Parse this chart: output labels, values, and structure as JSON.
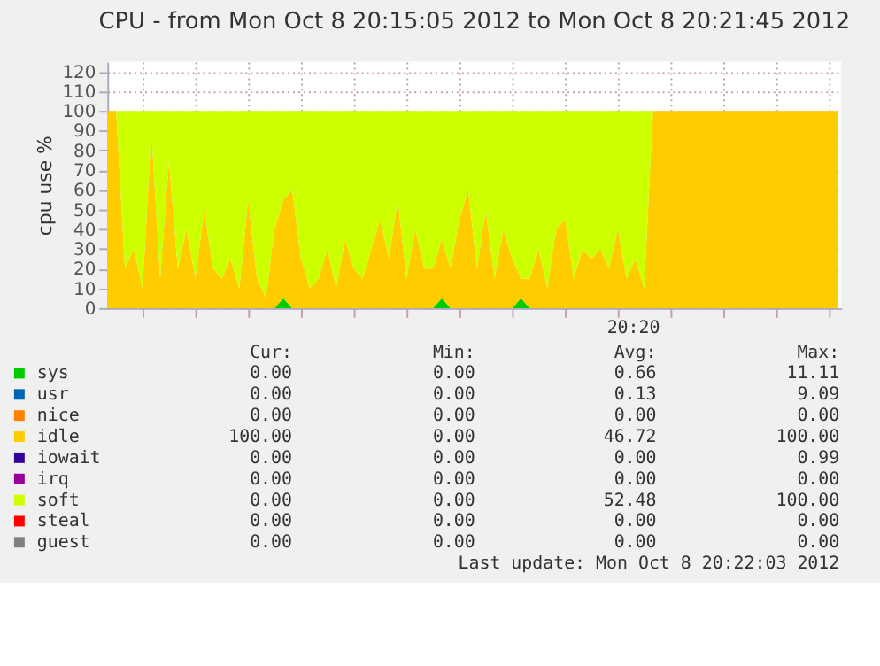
{
  "chart_data": {
    "type": "area",
    "stacked": true,
    "title": "CPU - from Mon Oct  8 20:15:05 2012 to Mon Oct  8 20:21:45 2012",
    "ylabel": "cpu use %",
    "categories": [
      null,
      null,
      null,
      null,
      null,
      null,
      null,
      null,
      null,
      null,
      null,
      null,
      null,
      null,
      null,
      null,
      null,
      null,
      null,
      null,
      null,
      null,
      null,
      null,
      null,
      null,
      null,
      null,
      null,
      null,
      null,
      null,
      null,
      null,
      null,
      null,
      null,
      null,
      null,
      null,
      null,
      null,
      null,
      null,
      null,
      null,
      null,
      null,
      null,
      null,
      null,
      null,
      null,
      null,
      null,
      null,
      null,
      null,
      null,
      null,
      null,
      null,
      null,
      null,
      null,
      null,
      null,
      null,
      null,
      null,
      null,
      null,
      null,
      null,
      null,
      null,
      null,
      null,
      null,
      null,
      null,
      null,
      null,
      null
    ],
    "series": [
      {
        "name": "sys",
        "color": "#00cc00",
        "values": [
          0,
          0,
          0,
          0,
          0,
          0,
          0,
          0,
          0,
          0,
          0,
          0,
          0,
          0,
          0,
          0,
          0,
          0,
          0,
          0,
          5,
          0,
          0,
          0,
          0,
          0,
          0,
          0,
          0,
          0,
          0,
          0,
          0,
          0,
          0,
          0,
          0,
          0,
          5,
          0,
          0,
          0,
          0,
          0,
          0,
          0,
          0,
          5,
          0,
          0,
          0,
          0,
          0,
          0,
          0,
          0,
          0,
          0,
          0,
          0,
          0,
          0,
          0,
          0,
          0,
          0,
          0,
          0,
          0,
          0,
          0,
          0,
          0,
          0,
          0,
          0,
          0,
          0,
          0,
          0,
          0,
          0,
          0,
          0
        ]
      },
      {
        "name": "usr",
        "color": "#0066b3",
        "values": [
          null,
          null,
          null,
          null,
          null,
          null,
          null,
          null,
          null,
          null,
          null,
          null,
          null,
          null,
          null,
          null,
          null,
          null,
          null,
          null,
          null,
          null,
          null,
          null,
          null,
          null,
          null,
          null,
          null,
          null,
          null,
          null,
          null,
          null,
          null,
          null,
          null,
          null,
          null,
          null,
          null,
          null,
          null,
          null,
          null,
          null,
          null,
          null,
          null,
          null,
          null,
          null,
          null,
          null,
          null,
          null,
          null,
          null,
          null,
          null,
          null,
          null,
          null,
          null,
          null,
          null,
          null,
          null,
          null,
          null,
          null,
          null,
          null,
          null,
          null,
          null,
          null,
          null,
          null,
          null,
          null,
          null,
          null,
          null
        ]
      },
      {
        "name": "nice",
        "color": "#ff8000",
        "values": [
          null,
          null,
          null,
          null,
          null,
          null,
          null,
          null,
          null,
          null,
          null,
          null,
          null,
          null,
          null,
          null,
          null,
          null,
          null,
          null,
          null,
          null,
          null,
          null,
          null,
          null,
          null,
          null,
          null,
          null,
          null,
          null,
          null,
          null,
          null,
          null,
          null,
          null,
          null,
          null,
          null,
          null,
          null,
          null,
          null,
          null,
          null,
          null,
          null,
          null,
          null,
          null,
          null,
          null,
          null,
          null,
          null,
          null,
          null,
          null,
          null,
          null,
          null,
          null,
          null,
          null,
          null,
          null,
          null,
          null,
          null,
          null,
          null,
          null,
          null,
          null,
          null,
          null,
          null,
          null,
          null,
          null,
          null,
          null
        ]
      },
      {
        "name": "idle",
        "color": "#ffcc00",
        "values": [
          100,
          100,
          20,
          30,
          10,
          90,
          15,
          75,
          20,
          40,
          15,
          50,
          20,
          15,
          25,
          10,
          55,
          15,
          5,
          40,
          50,
          60,
          25,
          10,
          15,
          30,
          10,
          35,
          20,
          15,
          30,
          45,
          25,
          55,
          15,
          40,
          20,
          20,
          30,
          20,
          45,
          60,
          20,
          50,
          15,
          40,
          25,
          10,
          15,
          30,
          10,
          40,
          45,
          15,
          30,
          25,
          30,
          20,
          40,
          15,
          25,
          10,
          100,
          100,
          100,
          100,
          100,
          100,
          100,
          100,
          100,
          100,
          100,
          100,
          100,
          100,
          100,
          100,
          100,
          100,
          100,
          100,
          100,
          100
        ]
      },
      {
        "name": "iowait",
        "color": "#330099",
        "values": [
          null,
          null,
          null,
          null,
          null,
          null,
          null,
          null,
          null,
          null,
          null,
          null,
          null,
          null,
          null,
          null,
          null,
          null,
          null,
          null,
          null,
          null,
          null,
          null,
          null,
          null,
          null,
          null,
          null,
          null,
          null,
          null,
          null,
          null,
          null,
          null,
          null,
          null,
          null,
          null,
          null,
          null,
          null,
          null,
          null,
          null,
          null,
          null,
          null,
          null,
          null,
          null,
          null,
          null,
          null,
          null,
          null,
          null,
          null,
          null,
          null,
          null,
          null,
          null,
          null,
          null,
          null,
          null,
          null,
          null,
          null,
          null,
          null,
          null,
          null,
          null,
          null,
          null,
          null,
          null,
          null,
          null,
          null,
          null
        ]
      },
      {
        "name": "irq",
        "color": "#990099",
        "values": [
          null,
          null,
          null,
          null,
          null,
          null,
          null,
          null,
          null,
          null,
          null,
          null,
          null,
          null,
          null,
          null,
          null,
          null,
          null,
          null,
          null,
          null,
          null,
          null,
          null,
          null,
          null,
          null,
          null,
          null,
          null,
          null,
          null,
          null,
          null,
          null,
          null,
          null,
          null,
          null,
          null,
          null,
          null,
          null,
          null,
          null,
          null,
          null,
          null,
          null,
          null,
          null,
          null,
          null,
          null,
          null,
          null,
          null,
          null,
          null,
          null,
          null,
          null,
          null,
          null,
          null,
          null,
          null,
          null,
          null,
          null,
          null,
          null,
          null,
          null,
          null,
          null,
          null,
          null,
          null,
          null,
          null,
          null,
          null
        ]
      },
      {
        "name": "soft",
        "color": "#ccff00",
        "values": [
          0,
          0,
          80,
          70,
          90,
          10,
          85,
          25,
          80,
          60,
          85,
          50,
          80,
          85,
          75,
          90,
          45,
          85,
          95,
          60,
          45,
          40,
          75,
          90,
          85,
          70,
          90,
          65,
          80,
          85,
          70,
          55,
          75,
          45,
          85,
          60,
          80,
          80,
          65,
          80,
          55,
          40,
          80,
          50,
          85,
          60,
          75,
          85,
          85,
          70,
          90,
          60,
          55,
          85,
          70,
          75,
          70,
          80,
          60,
          85,
          75,
          90,
          0,
          0,
          0,
          0,
          0,
          0,
          0,
          0,
          0,
          0,
          0,
          0,
          0,
          0,
          0,
          0,
          0,
          0,
          0,
          0,
          0,
          0
        ]
      },
      {
        "name": "steal",
        "color": "#ff0000",
        "values": [
          null,
          null,
          null,
          null,
          null,
          null,
          null,
          null,
          null,
          null,
          null,
          null,
          null,
          null,
          null,
          null,
          null,
          null,
          null,
          null,
          null,
          null,
          null,
          null,
          null,
          null,
          null,
          null,
          null,
          null,
          null,
          null,
          null,
          null,
          null,
          null,
          null,
          null,
          null,
          null,
          null,
          null,
          null,
          null,
          null,
          null,
          null,
          null,
          null,
          null,
          null,
          null,
          null,
          null,
          null,
          null,
          null,
          null,
          null,
          null,
          null,
          null,
          null,
          null,
          null,
          null,
          null,
          null,
          null,
          null,
          null,
          null,
          null,
          null,
          null,
          null,
          null,
          null,
          null,
          null,
          null,
          null,
          null,
          null
        ]
      },
      {
        "name": "guest",
        "color": "#808080",
        "values": [
          null,
          null,
          null,
          null,
          null,
          null,
          null,
          null,
          null,
          null,
          null,
          null,
          null,
          null,
          null,
          null,
          null,
          null,
          null,
          null,
          null,
          null,
          null,
          null,
          null,
          null,
          null,
          null,
          null,
          null,
          null,
          null,
          null,
          null,
          null,
          null,
          null,
          null,
          null,
          null,
          null,
          null,
          null,
          null,
          null,
          null,
          null,
          null,
          null,
          null,
          null,
          null,
          null,
          null,
          null,
          null,
          null,
          null,
          null,
          null,
          null,
          null,
          null,
          null,
          null,
          null,
          null,
          null,
          null,
          null,
          null,
          null,
          null,
          null,
          null,
          null,
          null,
          null,
          null,
          null,
          null,
          null,
          null,
          null
        ]
      }
    ],
    "ylim": [
      0,
      125
    ],
    "yticks": [
      0,
      10,
      20,
      30,
      40,
      50,
      60,
      70,
      80,
      90,
      100,
      110,
      120
    ],
    "grid": true,
    "legend": "bottom",
    "annotations": [
      "Cur:",
      "Min:",
      "Avg:",
      "Max:",
      "0.00",
      "0.00",
      "0.66",
      "11.11",
      "0.00",
      "0.00",
      "0.13",
      "9.09",
      "0.00",
      "0.00",
      "0.00",
      "0.00",
      "100.00",
      "0.00",
      "46.72",
      "100.00",
      "0.00",
      "0.00",
      "0.00",
      "0.99",
      "0.00",
      "0.00",
      "0.00",
      "0.00",
      "0.00",
      "0.00",
      "52.48",
      "100.00",
      "0.00",
      "0.00",
      "0.00",
      "0.00",
      "0.00",
      "0.00",
      "0.00",
      "0.00",
      "Last update: Mon Oct  8 20:22:03 2012",
      "20:20"
    ]
  }
}
